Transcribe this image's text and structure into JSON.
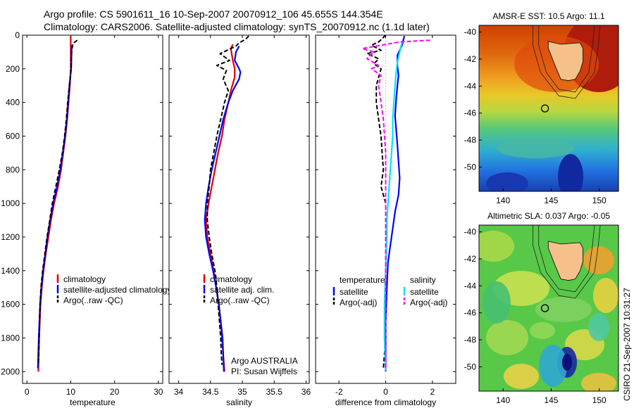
{
  "figure": {
    "title_line1": "Argo profile: CS 5901611_16 10-Sep-2007 20070912_106 45.655S 144.354E",
    "title_line2": "Climatology: CARS2006. Satellite-adjusted climatology: synTS_20070912.nc (1.1d later)",
    "credit": "CSIRO 21-Sep-2007 10:31:27",
    "colors": {
      "red": "#e00000",
      "blue": "#0000ff",
      "black": "#000000",
      "cyan": "#00e5ee",
      "magenta": "#ff00ff"
    }
  },
  "chart_data": [
    {
      "type": "line",
      "xlabel": "temperature",
      "xlim": [
        -1,
        31
      ],
      "xticks": [
        0,
        10,
        20,
        30
      ],
      "ylim": [
        2070,
        0
      ],
      "yticks": [
        0,
        200,
        400,
        600,
        800,
        1000,
        1200,
        1400,
        1600,
        1800,
        2000
      ],
      "legend": {
        "placement": "lower-left",
        "entries": [
          "climatology",
          "satellite-adjusted climatology",
          "Argo(..raw -QC)"
        ]
      },
      "series": [
        {
          "name": "climatology",
          "color": "red",
          "dash": false,
          "points": [
            [
              10,
              5
            ],
            [
              10,
              100
            ],
            [
              10,
              200
            ],
            [
              9.8,
              300
            ],
            [
              9.5,
              400
            ],
            [
              9.2,
              500
            ],
            [
              8.8,
              600
            ],
            [
              8.3,
              700
            ],
            [
              7.8,
              800
            ],
            [
              7.1,
              900
            ],
            [
              6.2,
              1000
            ],
            [
              5.5,
              1100
            ],
            [
              4.9,
              1200
            ],
            [
              4.3,
              1300
            ],
            [
              3.8,
              1400
            ],
            [
              3.4,
              1500
            ],
            [
              3.1,
              1600
            ],
            [
              2.8,
              1800
            ],
            [
              2.6,
              2000
            ]
          ]
        },
        {
          "name": "satellite-adjusted climatology",
          "color": "blue",
          "dash": false,
          "points": [
            [
              10.2,
              60
            ],
            [
              10.2,
              100
            ],
            [
              10.1,
              200
            ],
            [
              9.7,
              300
            ],
            [
              9.4,
              400
            ],
            [
              9.1,
              500
            ],
            [
              8.7,
              600
            ],
            [
              8.2,
              700
            ],
            [
              7.6,
              800
            ],
            [
              6.9,
              900
            ],
            [
              6.0,
              1000
            ],
            [
              5.3,
              1100
            ],
            [
              4.7,
              1200
            ],
            [
              4.2,
              1300
            ],
            [
              3.7,
              1400
            ],
            [
              3.3,
              1500
            ],
            [
              3.0,
              1600
            ],
            [
              2.7,
              1800
            ],
            [
              2.5,
              1980
            ]
          ]
        },
        {
          "name": "Argo(..raw -QC)",
          "color": "black",
          "dash": true,
          "points": [
            [
              11.5,
              30
            ],
            [
              10.5,
              50
            ],
            [
              10.2,
              100
            ],
            [
              10.1,
              200
            ],
            [
              9.7,
              300
            ],
            [
              9.3,
              400
            ],
            [
              9.0,
              500
            ],
            [
              8.6,
              600
            ],
            [
              8.1,
              700
            ],
            [
              7.4,
              800
            ],
            [
              6.6,
              900
            ],
            [
              5.8,
              1000
            ],
            [
              5.2,
              1100
            ],
            [
              4.6,
              1200
            ],
            [
              4.1,
              1300
            ],
            [
              3.6,
              1400
            ],
            [
              3.2,
              1500
            ],
            [
              3.0,
              1600
            ],
            [
              2.8,
              1800
            ],
            [
              2.6,
              1960
            ]
          ]
        }
      ]
    },
    {
      "type": "line",
      "xlabel": "salinity",
      "xlim": [
        33.85,
        36.05
      ],
      "xticks": [
        34,
        34.5,
        35,
        35.5,
        36
      ],
      "ylim": [
        2070,
        0
      ],
      "legend": {
        "placement": "lower-left",
        "entries": [
          "climatology",
          "satellite adj. clim.",
          "Argo(..raw -QC)"
        ]
      },
      "annotation_line1": "Argo AUSTRALIA",
      "annotation_line2": "PI: Susan Wijffels",
      "series": [
        {
          "name": "climatology",
          "color": "red",
          "dash": false,
          "points": [
            [
              34.85,
              55
            ],
            [
              34.82,
              80
            ],
            [
              34.85,
              150
            ],
            [
              34.88,
              200
            ],
            [
              34.88,
              250
            ],
            [
              34.82,
              330
            ],
            [
              34.78,
              400
            ],
            [
              34.72,
              500
            ],
            [
              34.68,
              600
            ],
            [
              34.62,
              700
            ],
            [
              34.57,
              800
            ],
            [
              34.52,
              900
            ],
            [
              34.47,
              1000
            ],
            [
              34.43,
              1100
            ],
            [
              34.45,
              1200
            ],
            [
              34.5,
              1300
            ],
            [
              34.55,
              1400
            ],
            [
              34.59,
              1500
            ],
            [
              34.63,
              1600
            ],
            [
              34.66,
              1700
            ],
            [
              34.68,
              1800
            ],
            [
              34.7,
              1900
            ],
            [
              34.72,
              2000
            ]
          ]
        },
        {
          "name": "satellite adj. clim.",
          "color": "blue",
          "dash": false,
          "points": [
            [
              34.95,
              65
            ],
            [
              34.9,
              100
            ],
            [
              34.88,
              150
            ],
            [
              34.95,
              200
            ],
            [
              34.97,
              220
            ],
            [
              34.95,
              260
            ],
            [
              34.85,
              330
            ],
            [
              34.78,
              400
            ],
            [
              34.7,
              500
            ],
            [
              34.64,
              600
            ],
            [
              34.58,
              700
            ],
            [
              34.52,
              800
            ],
            [
              34.47,
              900
            ],
            [
              34.43,
              1000
            ],
            [
              34.41,
              1100
            ],
            [
              34.43,
              1200
            ],
            [
              34.48,
              1300
            ],
            [
              34.54,
              1400
            ],
            [
              34.59,
              1500
            ],
            [
              34.63,
              1600
            ],
            [
              34.66,
              1700
            ],
            [
              34.69,
              1800
            ],
            [
              34.7,
              1900
            ],
            [
              34.71,
              2000
            ]
          ]
        },
        {
          "name": "Argo(..raw -QC)",
          "color": "black",
          "dash": true,
          "points": [
            [
              35.1,
              5
            ],
            [
              35.05,
              25
            ],
            [
              34.95,
              45
            ],
            [
              34.9,
              65
            ],
            [
              34.65,
              110
            ],
            [
              34.8,
              150
            ],
            [
              34.6,
              180
            ],
            [
              34.75,
              210
            ],
            [
              34.7,
              260
            ],
            [
              34.78,
              330
            ],
            [
              34.72,
              400
            ],
            [
              34.66,
              500
            ],
            [
              34.6,
              600
            ],
            [
              34.55,
              700
            ],
            [
              34.5,
              800
            ],
            [
              34.48,
              900
            ],
            [
              34.45,
              1000
            ],
            [
              34.45,
              1100
            ],
            [
              34.48,
              1200
            ],
            [
              34.52,
              1300
            ],
            [
              34.57,
              1400
            ],
            [
              34.6,
              1500
            ],
            [
              34.62,
              1600
            ],
            [
              34.64,
              1700
            ],
            [
              34.66,
              1800
            ],
            [
              34.67,
              1900
            ],
            [
              34.68,
              1960
            ]
          ]
        }
      ]
    },
    {
      "type": "line",
      "xlabel": "difference from climatology",
      "xlim": [
        -3,
        3
      ],
      "xticks": [
        -2,
        0,
        2
      ],
      "ylim": [
        2070,
        0
      ],
      "legend": {
        "placement": "lower-left",
        "header_left": "temperature",
        "header_right": "salinity",
        "entries": [
          "satellite",
          "Argo(-adj)",
          "satellite",
          "Argo(-adj)"
        ]
      },
      "series": [
        {
          "name": "satellite",
          "color": "blue",
          "dash": false,
          "points": [
            [
              0.8,
              5
            ],
            [
              0.7,
              60
            ],
            [
              0.5,
              120
            ],
            [
              0.5,
              180
            ],
            [
              0.55,
              240
            ],
            [
              0.5,
              300
            ],
            [
              0.45,
              380
            ],
            [
              0.4,
              480
            ],
            [
              0.45,
              560
            ],
            [
              0.5,
              650
            ],
            [
              0.55,
              750
            ],
            [
              0.6,
              850
            ],
            [
              0.55,
              950
            ],
            [
              0.4,
              1050
            ],
            [
              0.3,
              1150
            ],
            [
              0.2,
              1250
            ],
            [
              0.1,
              1350
            ],
            [
              0.05,
              1500
            ],
            [
              0.0,
              1700
            ],
            [
              0.0,
              1900
            ],
            [
              0.0,
              2000
            ]
          ]
        },
        {
          "name": "Argo(-adj)",
          "color": "black",
          "dash": true,
          "points": [
            [
              0.0,
              0
            ],
            [
              -0.3,
              40
            ],
            [
              -0.6,
              60
            ],
            [
              -0.2,
              90
            ],
            [
              -0.8,
              110
            ],
            [
              -0.3,
              140
            ],
            [
              -0.5,
              170
            ],
            [
              -0.2,
              200
            ],
            [
              -0.3,
              250
            ],
            [
              -0.4,
              300
            ],
            [
              -0.4,
              400
            ],
            [
              -0.3,
              500
            ],
            [
              -0.2,
              600
            ],
            [
              -0.15,
              700
            ],
            [
              -0.1,
              800
            ],
            [
              -0.2,
              900
            ],
            [
              -0.1,
              950
            ],
            [
              0.0,
              1000
            ],
            [
              0.0,
              1200
            ],
            [
              0.0,
              1500
            ],
            [
              0.0,
              1800
            ],
            [
              -0.1,
              1980
            ]
          ]
        },
        {
          "name": "satellite",
          "color": "cyan",
          "dash": false,
          "points": [
            [
              0.7,
              40
            ],
            [
              0.6,
              100
            ],
            [
              0.5,
              160
            ],
            [
              0.45,
              220
            ],
            [
              0.4,
              300
            ],
            [
              0.35,
              400
            ],
            [
              0.3,
              500
            ],
            [
              0.3,
              600
            ],
            [
              0.25,
              700
            ],
            [
              0.2,
              800
            ],
            [
              0.15,
              900
            ],
            [
              0.1,
              1000
            ],
            [
              0.05,
              1100
            ],
            [
              0.05,
              1200
            ],
            [
              0.0,
              1400
            ],
            [
              -0.05,
              1600
            ],
            [
              -0.05,
              1800
            ],
            [
              0.0,
              2000
            ]
          ]
        },
        {
          "name": "Argo(-adj)",
          "color": "magenta",
          "dash": true,
          "points": [
            [
              1.9,
              30
            ],
            [
              0.6,
              40
            ],
            [
              -1.0,
              80
            ],
            [
              -0.5,
              100
            ],
            [
              -0.8,
              140
            ],
            [
              -0.3,
              180
            ],
            [
              -0.6,
              200
            ],
            [
              -0.2,
              240
            ],
            [
              -0.3,
              300
            ],
            [
              -0.2,
              400
            ],
            [
              -0.1,
              500
            ],
            [
              0.0,
              700
            ],
            [
              0.0,
              900
            ],
            [
              0.0,
              1000
            ],
            [
              0.0,
              1200
            ],
            [
              0.0,
              1600
            ],
            [
              0.0,
              1800
            ],
            [
              0.0,
              2000
            ]
          ]
        }
      ]
    },
    {
      "type": "heatmap",
      "title": "AMSR-E SST: 10.5 Argo: 11.1",
      "xlim": [
        137.5,
        152
      ],
      "xticks": [
        140,
        145,
        150
      ],
      "ylim": [
        -51.8,
        -39.5
      ],
      "yticks": [
        -40,
        -42,
        -44,
        -46,
        -48,
        -50
      ],
      "argo_location": {
        "lon": 144.354,
        "lat": -45.655
      }
    },
    {
      "type": "heatmap",
      "title": "Altimetric SLA: 0.037 Argo: -0.05",
      "xlim": [
        137.5,
        152
      ],
      "xticks": [
        140,
        145,
        150
      ],
      "ylim": [
        -51.8,
        -39.5
      ],
      "yticks": [
        -40,
        -42,
        -44,
        -46,
        -48,
        -50
      ],
      "argo_location": {
        "lon": 144.354,
        "lat": -45.655
      }
    }
  ]
}
